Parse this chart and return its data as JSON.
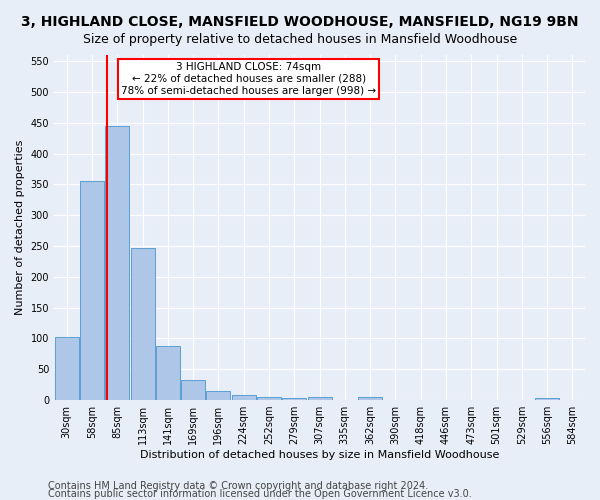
{
  "title_line1": "3, HIGHLAND CLOSE, MANSFIELD WOODHOUSE, MANSFIELD, NG19 9BN",
  "title_line2": "Size of property relative to detached houses in Mansfield Woodhouse",
  "xlabel": "Distribution of detached houses by size in Mansfield Woodhouse",
  "ylabel": "Number of detached properties",
  "bar_labels": [
    "30sqm",
    "58sqm",
    "85sqm",
    "113sqm",
    "141sqm",
    "169sqm",
    "196sqm",
    "224sqm",
    "252sqm",
    "279sqm",
    "307sqm",
    "335sqm",
    "362sqm",
    "390sqm",
    "418sqm",
    "446sqm",
    "473sqm",
    "501sqm",
    "529sqm",
    "556sqm",
    "584sqm"
  ],
  "bar_values": [
    102,
    356,
    445,
    246,
    88,
    32,
    14,
    9,
    5,
    4,
    5,
    0,
    5,
    0,
    0,
    0,
    0,
    0,
    0,
    4,
    0
  ],
  "bar_color": "#aec6e8",
  "bar_edge_color": "#5a9fd4",
  "annotation_text": "3 HIGHLAND CLOSE: 74sqm\n← 22% of detached houses are smaller (288)\n78% of semi-detached houses are larger (998) →",
  "annotation_box_color": "white",
  "annotation_box_edge_color": "red",
  "vline_color": "red",
  "vline_x": 1.59,
  "ylim": [
    0,
    560
  ],
  "yticks": [
    0,
    50,
    100,
    150,
    200,
    250,
    300,
    350,
    400,
    450,
    500,
    550
  ],
  "footer_line1": "Contains HM Land Registry data © Crown copyright and database right 2024.",
  "footer_line2": "Contains public sector information licensed under the Open Government Licence v3.0.",
  "bg_color": "#e8eef8",
  "title_fontsize": 10,
  "subtitle_fontsize": 9,
  "axis_label_fontsize": 8,
  "tick_fontsize": 7,
  "footer_fontsize": 7,
  "annot_fontsize": 7.5
}
